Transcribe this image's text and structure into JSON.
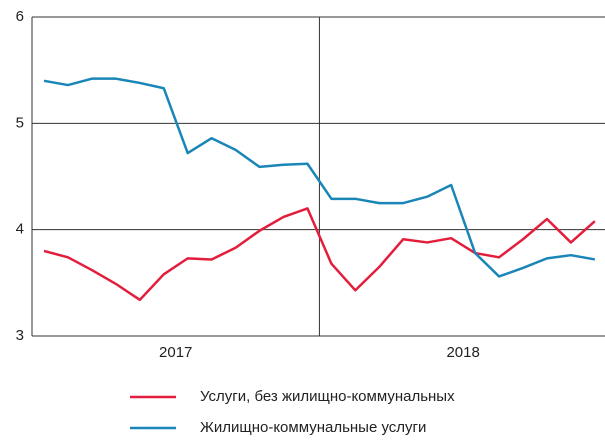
{
  "chart_data": {
    "type": "line",
    "categories": [
      null,
      null,
      null,
      null,
      null,
      null,
      null,
      null,
      null,
      null,
      null,
      null,
      null,
      null,
      null,
      null,
      null,
      null,
      null,
      null,
      null,
      null,
      null,
      null
    ],
    "groups": [
      "2017",
      "2018"
    ],
    "series": [
      {
        "name": "Услуги, без жилищно-коммунальных",
        "color": "#e31e3c",
        "values": [
          3.8,
          3.74,
          3.62,
          3.49,
          3.34,
          3.58,
          3.73,
          3.72,
          3.83,
          3.99,
          4.12,
          4.2,
          3.68,
          3.43,
          3.65,
          3.91,
          3.88,
          3.92,
          3.78,
          3.74,
          3.91,
          4.1,
          3.88,
          4.08
        ]
      },
      {
        "name": "Жилищно-коммунальные услуги",
        "color": "#1a86b8",
        "values": [
          5.4,
          5.36,
          5.42,
          5.42,
          5.38,
          5.33,
          4.72,
          4.86,
          4.75,
          4.59,
          4.61,
          4.62,
          4.29,
          4.29,
          4.25,
          4.25,
          4.31,
          4.42,
          3.78,
          3.56,
          3.64,
          3.73,
          3.76,
          3.72
        ]
      }
    ],
    "ylim": [
      3,
      6
    ],
    "yticks": [
      3,
      4,
      5,
      6
    ],
    "grid": true
  }
}
